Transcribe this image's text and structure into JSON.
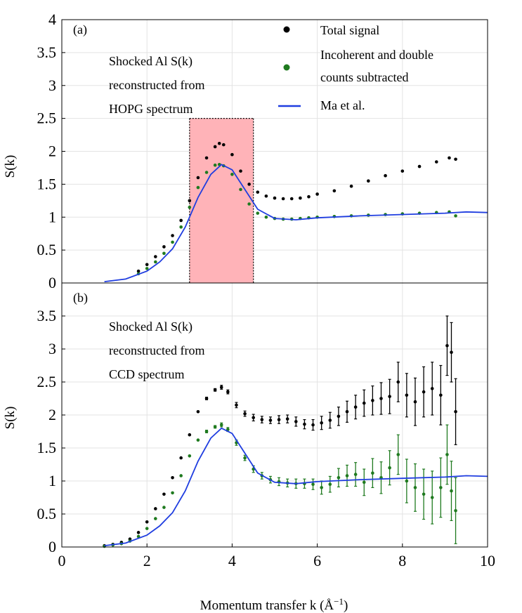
{
  "colors": {
    "total": "#000000",
    "subtracted": "#1f7a1f",
    "model": "#1f3de0",
    "highlight": "#ffb3b8",
    "grid": "#e3e3e3"
  },
  "x_axis_label": "Momentum transfer k (Å",
  "x_axis_label_sup": "−1",
  "x_axis_label_close": ")",
  "chart_data": [
    {
      "type": "scatter",
      "panel": "(a)",
      "annotation": [
        "Shocked Al S(k)",
        "reconstructed from",
        "HOPG spectrum"
      ],
      "ylabel": "S(k)",
      "xlim": [
        0,
        10
      ],
      "ylim": [
        0,
        4
      ],
      "yticks": [
        "0",
        "0.5",
        "1",
        "1.5",
        "2",
        "2.5",
        "3",
        "3.5",
        "4"
      ],
      "legend": {
        "placement": "top-right",
        "entries": [
          {
            "key": "total",
            "lines": [
              "Total signal"
            ],
            "marker": "dot"
          },
          {
            "key": "subtracted",
            "lines": [
              "Incoherent and double",
              "counts subtracted"
            ],
            "marker": "dot"
          },
          {
            "key": "model",
            "lines": [
              "Ma et al."
            ],
            "marker": "line"
          }
        ]
      },
      "shaded_region": {
        "x": [
          3.0,
          4.5
        ]
      },
      "series": [
        {
          "key": "total",
          "name": "Total signal",
          "x": [
            1.8,
            2.0,
            2.2,
            2.4,
            2.6,
            2.8,
            3.0,
            3.2,
            3.4,
            3.6,
            3.7,
            3.8,
            4.0,
            4.2,
            4.4,
            4.6,
            4.8,
            5.0,
            5.2,
            5.4,
            5.6,
            5.8,
            6.0,
            6.4,
            6.8,
            7.2,
            7.6,
            8.0,
            8.4,
            8.8,
            9.1,
            9.25
          ],
          "y": [
            0.18,
            0.28,
            0.4,
            0.55,
            0.72,
            0.95,
            1.25,
            1.6,
            1.9,
            2.07,
            2.12,
            2.1,
            1.95,
            1.7,
            1.5,
            1.38,
            1.32,
            1.29,
            1.28,
            1.28,
            1.29,
            1.31,
            1.35,
            1.4,
            1.47,
            1.55,
            1.63,
            1.7,
            1.77,
            1.84,
            1.9,
            1.88
          ]
        },
        {
          "key": "subtracted",
          "name": "Incoherent and double counts subtracted",
          "x": [
            1.8,
            2.0,
            2.2,
            2.4,
            2.6,
            2.8,
            3.0,
            3.2,
            3.4,
            3.6,
            3.7,
            3.8,
            4.0,
            4.2,
            4.4,
            4.6,
            4.8,
            5.0,
            5.2,
            5.4,
            5.6,
            5.8,
            6.0,
            6.4,
            6.8,
            7.2,
            7.6,
            8.0,
            8.4,
            8.8,
            9.1,
            9.25
          ],
          "y": [
            0.14,
            0.22,
            0.32,
            0.45,
            0.62,
            0.85,
            1.15,
            1.45,
            1.68,
            1.79,
            1.8,
            1.78,
            1.65,
            1.42,
            1.2,
            1.06,
            1.0,
            0.98,
            0.97,
            0.97,
            0.98,
            0.99,
            1.0,
            1.01,
            1.02,
            1.03,
            1.04,
            1.05,
            1.06,
            1.07,
            1.08,
            1.02
          ]
        },
        {
          "key": "model",
          "name": "Ma et al.",
          "x": [
            1.0,
            1.5,
            2.0,
            2.3,
            2.6,
            2.9,
            3.2,
            3.5,
            3.75,
            4.0,
            4.3,
            4.6,
            5.0,
            5.5,
            6.0,
            7.0,
            8.0,
            9.0,
            9.5,
            10.0
          ],
          "y": [
            0.02,
            0.06,
            0.18,
            0.32,
            0.52,
            0.85,
            1.3,
            1.65,
            1.8,
            1.72,
            1.42,
            1.12,
            0.98,
            0.96,
            0.99,
            1.02,
            1.04,
            1.06,
            1.08,
            1.07
          ]
        }
      ]
    },
    {
      "type": "scatter",
      "panel": "(b)",
      "annotation": [
        "Shocked Al S(k)",
        "reconstructed from",
        "CCD spectrum"
      ],
      "ylabel": "S(k)",
      "xlim": [
        0,
        10
      ],
      "ylim": [
        0,
        4
      ],
      "yticks": [
        "0",
        "0.5",
        "1",
        "1.5",
        "2",
        "2.5",
        "3",
        "3.5"
      ],
      "xticks": [
        "0",
        "2",
        "4",
        "6",
        "8",
        "10"
      ],
      "series": [
        {
          "key": "total",
          "name": "Total signal",
          "x": [
            1.0,
            1.2,
            1.4,
            1.6,
            1.8,
            2.0,
            2.2,
            2.4,
            2.6,
            2.8,
            3.0,
            3.2,
            3.4,
            3.6,
            3.75,
            3.9,
            4.1,
            4.3,
            4.5,
            4.7,
            4.9,
            5.1,
            5.3,
            5.5,
            5.7,
            5.9,
            6.1,
            6.3,
            6.5,
            6.7,
            6.9,
            7.1,
            7.3,
            7.5,
            7.7,
            7.9,
            8.1,
            8.3,
            8.5,
            8.7,
            8.9,
            9.05,
            9.15,
            9.25
          ],
          "y": [
            0.02,
            0.04,
            0.07,
            0.12,
            0.22,
            0.38,
            0.58,
            0.8,
            1.05,
            1.35,
            1.7,
            2.05,
            2.25,
            2.38,
            2.42,
            2.35,
            2.15,
            2.02,
            1.96,
            1.93,
            1.92,
            1.93,
            1.94,
            1.9,
            1.86,
            1.85,
            1.88,
            1.92,
            1.98,
            2.05,
            2.12,
            2.18,
            2.22,
            2.25,
            2.28,
            2.5,
            2.3,
            2.2,
            2.35,
            2.4,
            2.3,
            3.05,
            2.95,
            2.05
          ],
          "err": [
            0,
            0,
            0,
            0,
            0,
            0,
            0,
            0,
            0,
            0,
            0,
            0,
            0.02,
            0.02,
            0.03,
            0.03,
            0.04,
            0.04,
            0.05,
            0.05,
            0.05,
            0.06,
            0.06,
            0.07,
            0.07,
            0.08,
            0.1,
            0.12,
            0.14,
            0.16,
            0.18,
            0.2,
            0.22,
            0.24,
            0.26,
            0.3,
            0.33,
            0.36,
            0.38,
            0.4,
            0.45,
            0.45,
            0.45,
            0.5
          ]
        },
        {
          "key": "subtracted",
          "name": "Incoherent and double counts subtracted",
          "x": [
            1.0,
            1.2,
            1.4,
            1.6,
            1.8,
            2.0,
            2.2,
            2.4,
            2.6,
            2.8,
            3.0,
            3.2,
            3.4,
            3.6,
            3.75,
            3.9,
            4.1,
            4.3,
            4.5,
            4.7,
            4.9,
            5.1,
            5.3,
            5.5,
            5.7,
            5.9,
            6.1,
            6.3,
            6.5,
            6.7,
            6.9,
            7.1,
            7.3,
            7.5,
            7.7,
            7.9,
            8.1,
            8.3,
            8.5,
            8.7,
            8.9,
            9.05,
            9.15,
            9.25
          ],
          "y": [
            0.01,
            0.03,
            0.05,
            0.09,
            0.16,
            0.28,
            0.43,
            0.6,
            0.82,
            1.08,
            1.38,
            1.62,
            1.75,
            1.82,
            1.85,
            1.78,
            1.58,
            1.35,
            1.18,
            1.08,
            1.02,
            0.99,
            0.97,
            0.96,
            0.96,
            0.95,
            0.9,
            0.95,
            1.05,
            1.08,
            1.1,
            0.98,
            1.12,
            1.05,
            1.2,
            1.4,
            1.0,
            0.9,
            0.8,
            0.75,
            0.9,
            1.4,
            0.85,
            0.55
          ],
          "err": [
            0,
            0,
            0,
            0,
            0,
            0,
            0,
            0,
            0,
            0,
            0,
            0,
            0.02,
            0.02,
            0.03,
            0.03,
            0.04,
            0.04,
            0.05,
            0.05,
            0.05,
            0.06,
            0.06,
            0.07,
            0.07,
            0.08,
            0.1,
            0.12,
            0.14,
            0.16,
            0.18,
            0.2,
            0.22,
            0.24,
            0.26,
            0.3,
            0.33,
            0.36,
            0.38,
            0.4,
            0.45,
            0.45,
            0.45,
            0.5
          ]
        },
        {
          "key": "model",
          "name": "Ma et al.",
          "x": [
            1.0,
            1.5,
            2.0,
            2.3,
            2.6,
            2.9,
            3.2,
            3.5,
            3.75,
            4.0,
            4.3,
            4.6,
            5.0,
            5.5,
            6.0,
            7.0,
            8.0,
            9.0,
            9.5,
            10.0
          ],
          "y": [
            0.02,
            0.06,
            0.18,
            0.32,
            0.52,
            0.85,
            1.3,
            1.65,
            1.8,
            1.72,
            1.42,
            1.12,
            0.98,
            0.96,
            0.99,
            1.02,
            1.04,
            1.06,
            1.08,
            1.07
          ]
        }
      ]
    }
  ]
}
